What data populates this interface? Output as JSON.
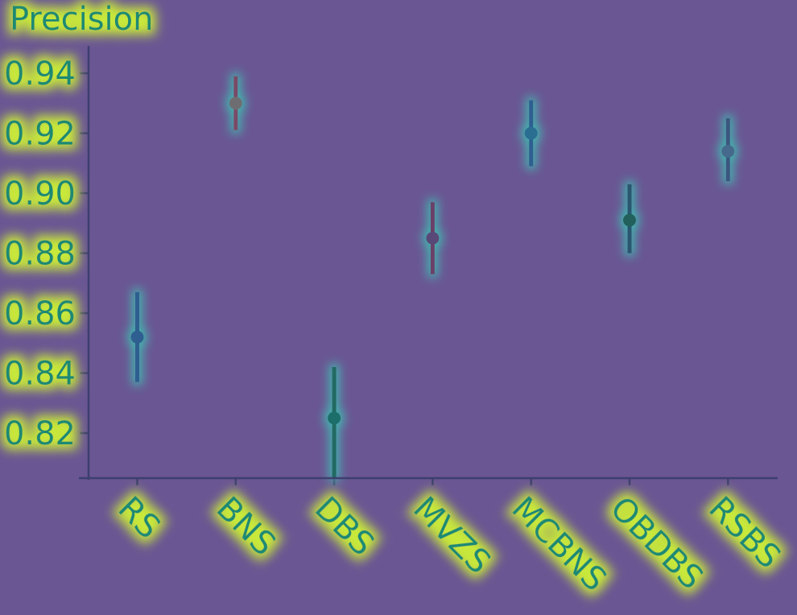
{
  "chart_data": {
    "type": "scatter",
    "title": "",
    "xlabel": "",
    "ylabel": "Precision",
    "ylim": [
      0.805,
      0.95
    ],
    "yticks": [
      0.82,
      0.84,
      0.86,
      0.88,
      0.9,
      0.92,
      0.94
    ],
    "ytick_labels": [
      "0.82",
      "0.84",
      "0.86",
      "0.88",
      "0.90",
      "0.92",
      "0.94"
    ],
    "categories": [
      "RS",
      "BNS",
      "DBS",
      "MVZS",
      "MCBNS",
      "OBDBS",
      "RSBS"
    ],
    "series": [
      {
        "values": [
          0.852,
          0.93,
          0.825,
          0.885,
          0.92,
          0.891,
          0.914
        ],
        "error_low": [
          0.837,
          0.921,
          0.805,
          0.873,
          0.909,
          0.88,
          0.904
        ],
        "error_high": [
          0.867,
          0.939,
          0.842,
          0.897,
          0.931,
          0.903,
          0.925
        ]
      }
    ],
    "colors": {
      "background": "#6a5693",
      "axis": "#3d3f6e",
      "text": "#1f8a73",
      "glow": "#c8e83a",
      "points": [
        "#2d5f90",
        "#6e6e72",
        "#1f6e6a",
        "#584a78",
        "#2a6e92",
        "#20605c",
        "#456a8c"
      ],
      "bars": [
        "#2d5f90",
        "#7a4868",
        "#236a62",
        "#6a4168",
        "#2d5f90",
        "#2a5670",
        "#3a5680"
      ]
    }
  }
}
